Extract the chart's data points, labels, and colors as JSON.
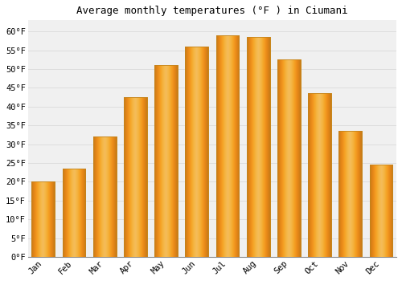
{
  "title": "Average monthly temperatures (°F ) in Ciumani",
  "months": [
    "Jan",
    "Feb",
    "Mar",
    "Apr",
    "May",
    "Jun",
    "Jul",
    "Aug",
    "Sep",
    "Oct",
    "Nov",
    "Dec"
  ],
  "values": [
    20,
    23.5,
    32,
    42.5,
    51,
    56,
    59,
    58.5,
    52.5,
    43.5,
    33.5,
    24.5
  ],
  "bar_color_light": "#FFCC44",
  "bar_color_dark": "#F0A020",
  "bar_edge_color": "#C8861A",
  "background_color": "#FFFFFF",
  "plot_bg_color": "#F0F0F0",
  "ylim": [
    0,
    63
  ],
  "ytick_start": 0,
  "ytick_end": 60,
  "ytick_step": 5,
  "title_fontsize": 9,
  "tick_fontsize": 7.5,
  "grid_color": "#DDDDDD"
}
